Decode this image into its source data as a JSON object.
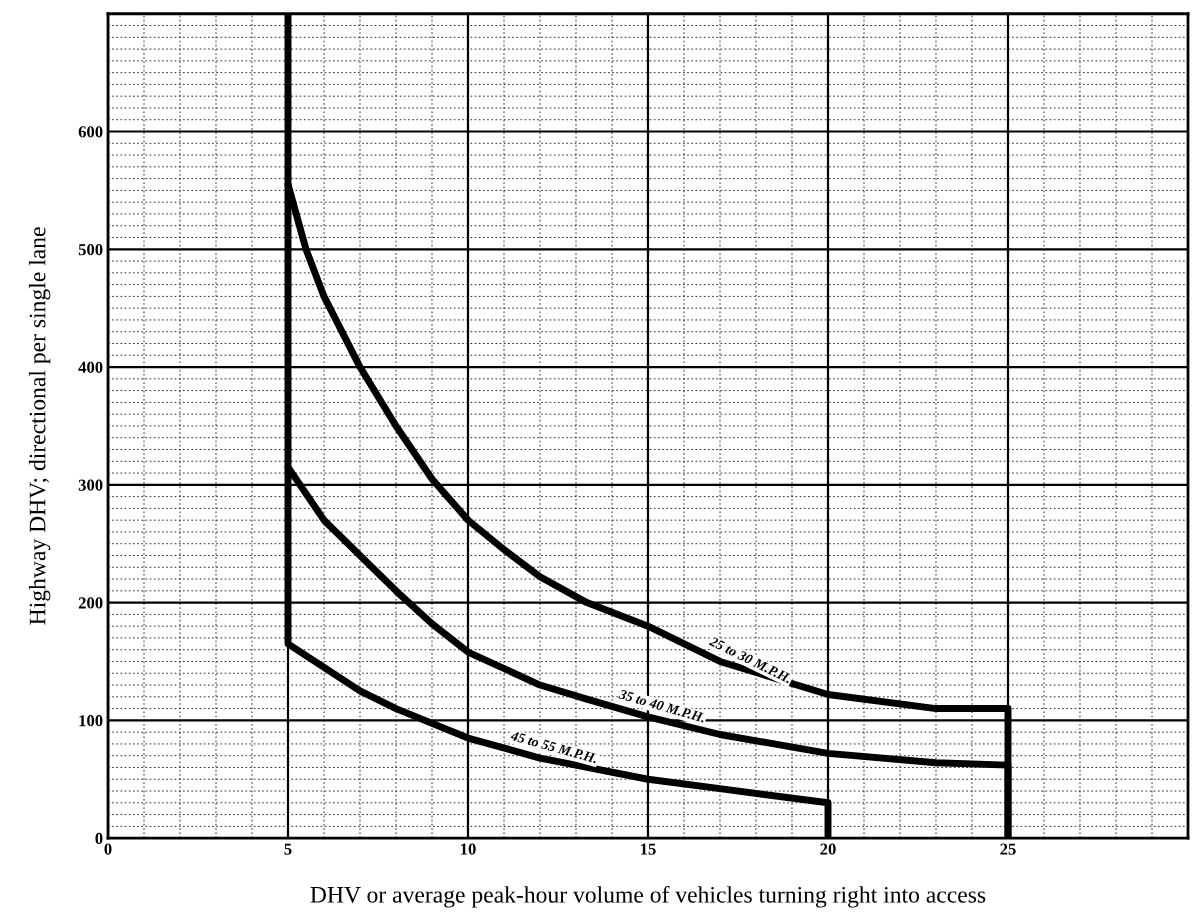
{
  "chart_data": {
    "type": "line",
    "xlabel": "DHV or average peak-hour volume of vehicles turning right into access",
    "ylabel": "Highway DHV; directional per single lane",
    "xlim": [
      0,
      30
    ],
    "ylim": [
      0,
      700
    ],
    "xticks": [
      0,
      5,
      10,
      15,
      20,
      25
    ],
    "yticks": [
      0,
      100,
      200,
      300,
      400,
      500,
      600
    ],
    "grid": true,
    "line_style": "solid",
    "marker": "none",
    "series": [
      {
        "name": "25 to 30 M.P.H.",
        "color": "#000000",
        "x": [
          5,
          5.5,
          6,
          7,
          8,
          9,
          10,
          11,
          12,
          13.3,
          15,
          17,
          20,
          23,
          25,
          25
        ],
        "values": [
          555,
          500,
          460,
          400,
          350,
          305,
          270,
          245,
          222,
          200,
          180,
          150,
          122,
          110,
          110,
          0
        ]
      },
      {
        "name": "35 to 40 M.P.H.",
        "color": "#000000",
        "x": [
          5,
          6,
          7,
          8,
          9,
          10,
          12,
          13.3,
          15,
          17,
          20,
          23,
          25,
          25
        ],
        "values": [
          315,
          270,
          240,
          210,
          182,
          158,
          130,
          118,
          103,
          88,
          72,
          64,
          62,
          0
        ]
      },
      {
        "name": "45 to 55 M.P.H.",
        "color": "#000000",
        "x": [
          5,
          5,
          7,
          8,
          10,
          12,
          15,
          17,
          20,
          20
        ],
        "values": [
          700,
          165,
          125,
          110,
          85,
          68,
          50,
          42,
          30,
          0
        ]
      }
    ]
  }
}
